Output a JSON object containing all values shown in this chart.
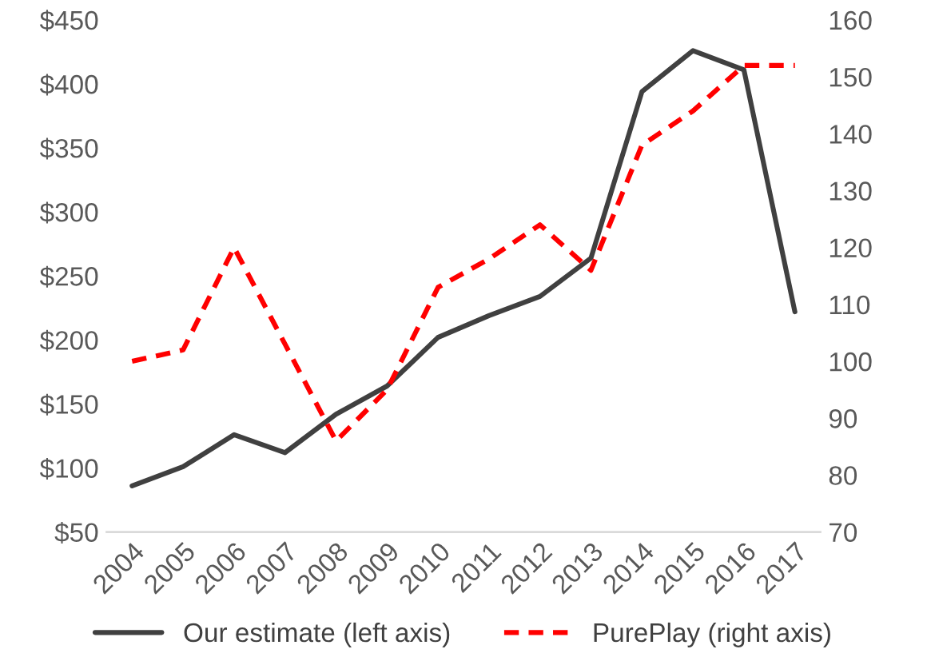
{
  "chart_data": {
    "type": "line",
    "categories": [
      "2004",
      "2005",
      "2006",
      "2007",
      "2008",
      "2009",
      "2010",
      "2011",
      "2012",
      "2013",
      "2014",
      "2015",
      "2016",
      "2017"
    ],
    "series": [
      {
        "name": "Our estimate (left axis)",
        "color": "#404040",
        "line_style": "solid",
        "values": [
          86,
          101,
          126,
          112,
          142,
          164,
          202,
          219,
          234,
          264,
          394,
          426,
          411,
          222
        ]
      },
      {
        "name": "PurePlay (right axis)",
        "color": "#ff0000",
        "line_style": "dashed",
        "axis": "y2",
        "values": [
          100,
          102,
          120,
          103,
          86,
          95,
          113,
          118,
          124,
          116,
          138,
          144,
          152,
          152
        ]
      }
    ],
    "ylim": [
      50,
      450
    ],
    "yticks": [
      {
        "value": 50,
        "label": "$50"
      },
      {
        "value": 100,
        "label": "$100"
      },
      {
        "value": 150,
        "label": "$150"
      },
      {
        "value": 200,
        "label": "$200"
      },
      {
        "value": 250,
        "label": "$250"
      },
      {
        "value": 300,
        "label": "$300"
      },
      {
        "value": 350,
        "label": "$350"
      },
      {
        "value": 400,
        "label": "$400"
      },
      {
        "value": 450,
        "label": "$450"
      }
    ],
    "y2lim": [
      70,
      160
    ],
    "y2ticks": [
      70,
      80,
      90,
      100,
      110,
      120,
      130,
      140,
      150,
      160
    ],
    "grid": false,
    "legend": "bottom"
  }
}
